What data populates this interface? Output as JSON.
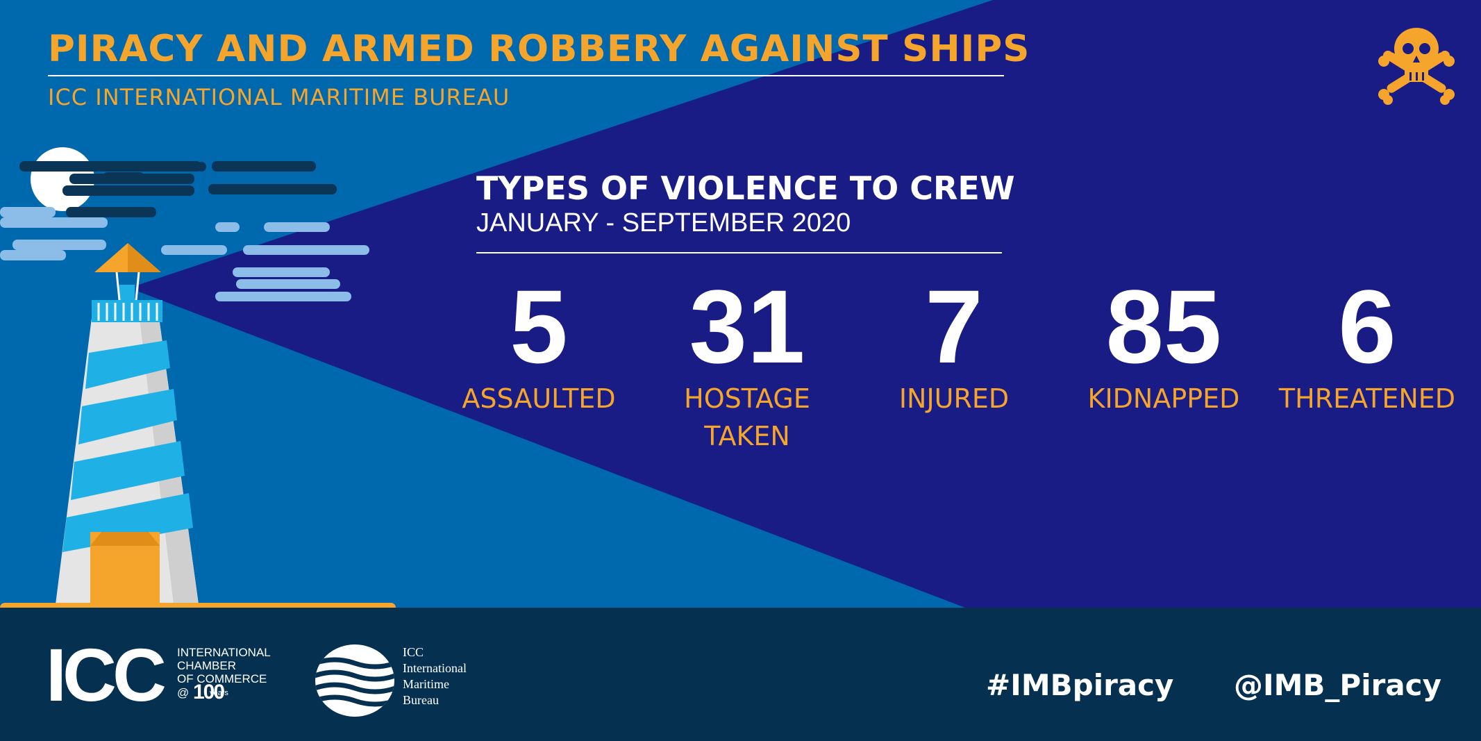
{
  "header": {
    "title": "PIRACY AND ARMED ROBBERY AGAINST SHIPS",
    "subtitle": "ICC INTERNATIONAL MARITIME BUREAU"
  },
  "section": {
    "title": "TYPES OF VIOLENCE TO CREW",
    "period": "JANUARY - SEPTEMBER 2020"
  },
  "stats": [
    {
      "value": "5",
      "label_line1": "ASSAULTED",
      "label_line2": ""
    },
    {
      "value": "31",
      "label_line1": "HOSTAGE",
      "label_line2": "TAKEN"
    },
    {
      "value": "7",
      "label_line1": "INJURED",
      "label_line2": ""
    },
    {
      "value": "85",
      "label_line1": "KIDNAPPED",
      "label_line2": ""
    },
    {
      "value": "6",
      "label_line1": "THREATENED",
      "label_line2": ""
    }
  ],
  "footer": {
    "icc_letters": "ICC",
    "icc_org_lines": [
      "INTERNATIONAL",
      "CHAMBER",
      "OF COMMERCE"
    ],
    "icc_at": "@",
    "icc_100": "100",
    "icc_years": "years",
    "imb_lines": [
      "ICC",
      "International",
      "Maritime",
      "Bureau"
    ],
    "hashtag": "#IMBpiracy",
    "handle": "@IMB_Piracy"
  },
  "icons": {
    "skull": "skull-crossbones-icon",
    "lighthouse": "lighthouse-illustration",
    "imb_logo": "waves-logo-icon"
  },
  "colors": {
    "light_blue": "#0068ad",
    "dark_blue": "#191c85",
    "orange": "#f6a52c",
    "footer_navy": "#05304f",
    "white": "#ffffff"
  }
}
